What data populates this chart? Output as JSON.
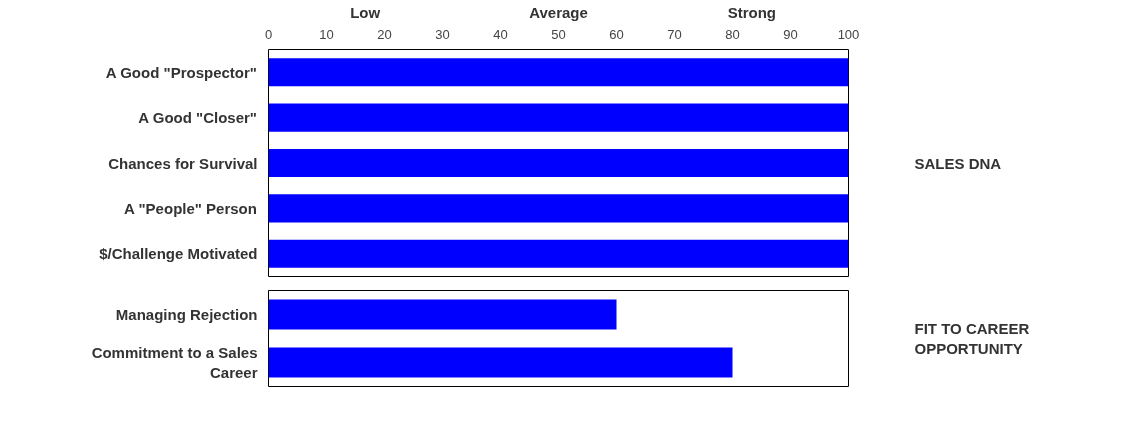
{
  "chart_data": [
    {
      "type": "bar",
      "orientation": "horizontal",
      "categories": [
        "A Good \"Prospector\"",
        "A Good \"Closer\"",
        "Chances for Survival",
        "A \"People\" Person",
        "$/Challenge Motivated"
      ],
      "values": [
        100,
        100,
        100,
        100,
        100
      ],
      "color": "#0000ff",
      "xlim": [
        0,
        100
      ],
      "xticks": [
        0,
        10,
        20,
        30,
        40,
        50,
        60,
        70,
        80,
        90,
        100
      ],
      "grid": false,
      "annotations": [
        "Low",
        "Average",
        "Strong",
        "SALES DNA"
      ]
    },
    {
      "type": "bar",
      "orientation": "horizontal",
      "categories": [
        "Managing Rejection",
        "Commitment to a Sales Career"
      ],
      "values": [
        60,
        80
      ],
      "color": "#0000ff",
      "xlim": [
        0,
        100
      ],
      "grid": false,
      "tick_labels": "y",
      "annotations": [
        "FIT TO CAREER OPPORTUNITY"
      ]
    }
  ]
}
